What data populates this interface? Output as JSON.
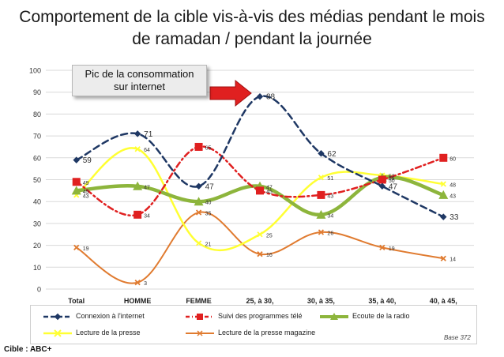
{
  "title": "Comportement de la cible vis-à-vis des médias pendant le mois de ramadan / pendant la journée",
  "callout": {
    "line1": "Pic de la consommation",
    "line2": "sur internet"
  },
  "footer": {
    "base": "Base 372",
    "cible": "Cible : ABC+"
  },
  "colors": {
    "internet": "#1f3864",
    "tv": "#e02020",
    "radio": "#8db53c",
    "presse": "#ffff33",
    "magazine": "#e07b30",
    "arrow": "#e02020",
    "grid": "#d9d9d9"
  },
  "chart_data": {
    "type": "line",
    "title": "Comportement de la cible vis-à-vis des médias pendant le mois de ramadan / pendant la journée",
    "categories": [
      "Total",
      "HOMME",
      "FEMME",
      "25, à 30,",
      "30, à 35,",
      "35, à 40,",
      "40, à 45,"
    ],
    "ylim": [
      0,
      100
    ],
    "yticks": [
      0,
      10,
      20,
      30,
      40,
      50,
      60,
      70,
      80,
      90,
      100
    ],
    "grid": true,
    "legend_position": "bottom",
    "series": [
      {
        "key": "internet",
        "name": "Connexion à l'internet",
        "values": [
          59,
          71,
          47,
          88,
          62,
          47,
          33
        ],
        "labels": [
          "59",
          "71",
          "47",
          "88",
          "62",
          "47",
          "33"
        ]
      },
      {
        "key": "tv",
        "name": "Suivi des programmes télé",
        "values": [
          49,
          34,
          65,
          45,
          43,
          50,
          60
        ],
        "labels": [
          "49",
          "34",
          "65",
          "45",
          "43",
          "50",
          "60"
        ]
      },
      {
        "key": "radio",
        "name": "Ecoute de la radio",
        "values": [
          45,
          47,
          40,
          47,
          34,
          51,
          43
        ],
        "labels": [
          "45",
          "47",
          "40",
          "47",
          "34",
          "51",
          "43"
        ]
      },
      {
        "key": "presse",
        "name": "Lecture de la presse",
        "values": [
          43,
          64,
          21,
          25,
          51,
          52,
          48
        ],
        "labels": [
          "43",
          "64",
          "21",
          "25",
          "51",
          "52",
          "48"
        ]
      },
      {
        "key": "magazine",
        "name": "Lecture de la presse magazine",
        "values": [
          19,
          3,
          35,
          16,
          26,
          19,
          14
        ],
        "labels": [
          "19",
          "3",
          "35",
          "16",
          "26",
          "19",
          "14"
        ]
      }
    ],
    "annotation": "Pic de la consommation sur internet"
  }
}
